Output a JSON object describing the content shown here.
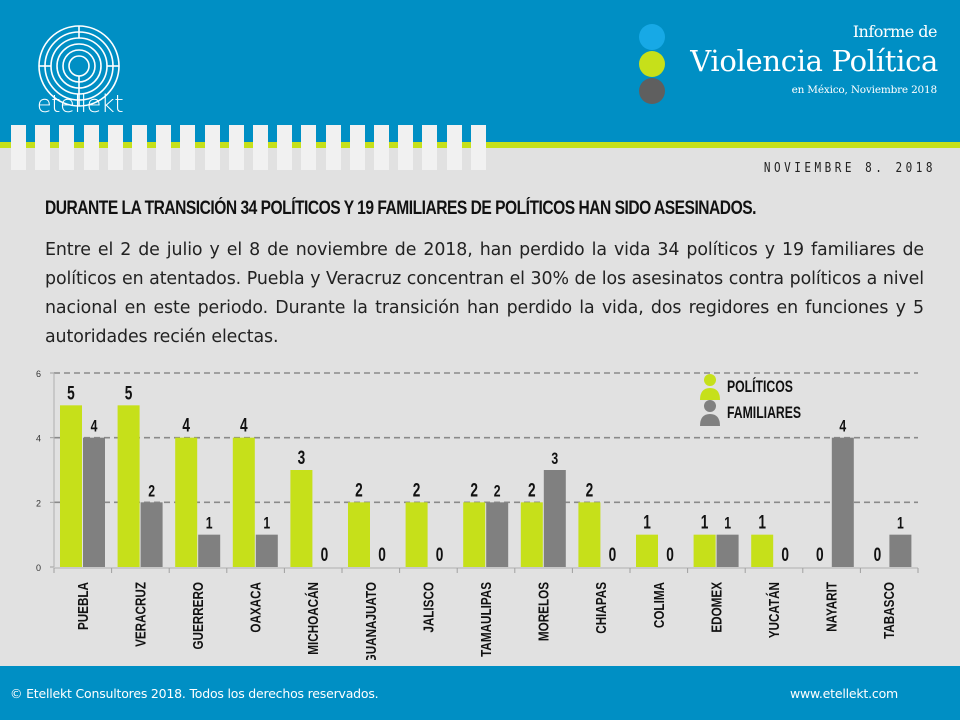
{
  "header": {
    "logo_text": "etellekt",
    "title_line1": "Informe de",
    "title_line2": "Violencia Política",
    "title_line3": "en México, Noviembre 2018",
    "dot_colors": [
      "#17a9e6",
      "#c6e01a",
      "#5f5f5f"
    ]
  },
  "date": "NOVIEMBRE 8. 2018",
  "headline": "DURANTE LA TRANSICIÓN 34 POLÍTICOS Y 19  FAMILIARES DE POLÍTICOS HAN SIDO ASESINADOS.",
  "body": "Entre el 2 de julio y el 8 de noviembre de 2018, han perdido la vida 34 políticos y 19 familiares de políticos en atentados. Puebla y Veracruz concentran el 30% de los asesinatos contra políticos a nivel nacional en este periodo. Durante la transición han perdido la vida, dos regidores en funciones y 5 autoridades recién electas.",
  "colors": {
    "brand_blue": "#008fc4",
    "lime": "#c6e01a",
    "gray_bar": "#808080"
  },
  "chart_data": {
    "type": "bar",
    "title": "",
    "xlabel": "",
    "ylabel": "",
    "ylim": [
      0,
      6
    ],
    "yticks": [
      0,
      2,
      4,
      6
    ],
    "grid": true,
    "legend_position": "top-right",
    "categories": [
      "PUEBLA",
      "VERACRUZ",
      "GUERRERO",
      "OAXACA",
      "MICHOACÁN",
      "GUANAJUATO",
      "JALISCO",
      "TAMAULIPAS",
      "MORELOS",
      "CHIAPAS",
      "COLIMA",
      "EDOMEX",
      "YUCATÁN",
      "NAYARIT",
      "TABASCO"
    ],
    "series": [
      {
        "name": "POLÍTICOS",
        "color": "#c6e01a",
        "values": [
          5,
          5,
          4,
          4,
          3,
          2,
          2,
          2,
          2,
          2,
          1,
          1,
          1,
          0,
          0
        ]
      },
      {
        "name": "FAMILIARES",
        "color": "#808080",
        "values": [
          4,
          2,
          1,
          1,
          0,
          0,
          0,
          2,
          3,
          0,
          0,
          1,
          0,
          4,
          1
        ]
      }
    ]
  },
  "footer": {
    "copyright": "© Etellekt Consultores 2018. Todos los derechos reservados.",
    "website": "www.etellekt.com"
  }
}
